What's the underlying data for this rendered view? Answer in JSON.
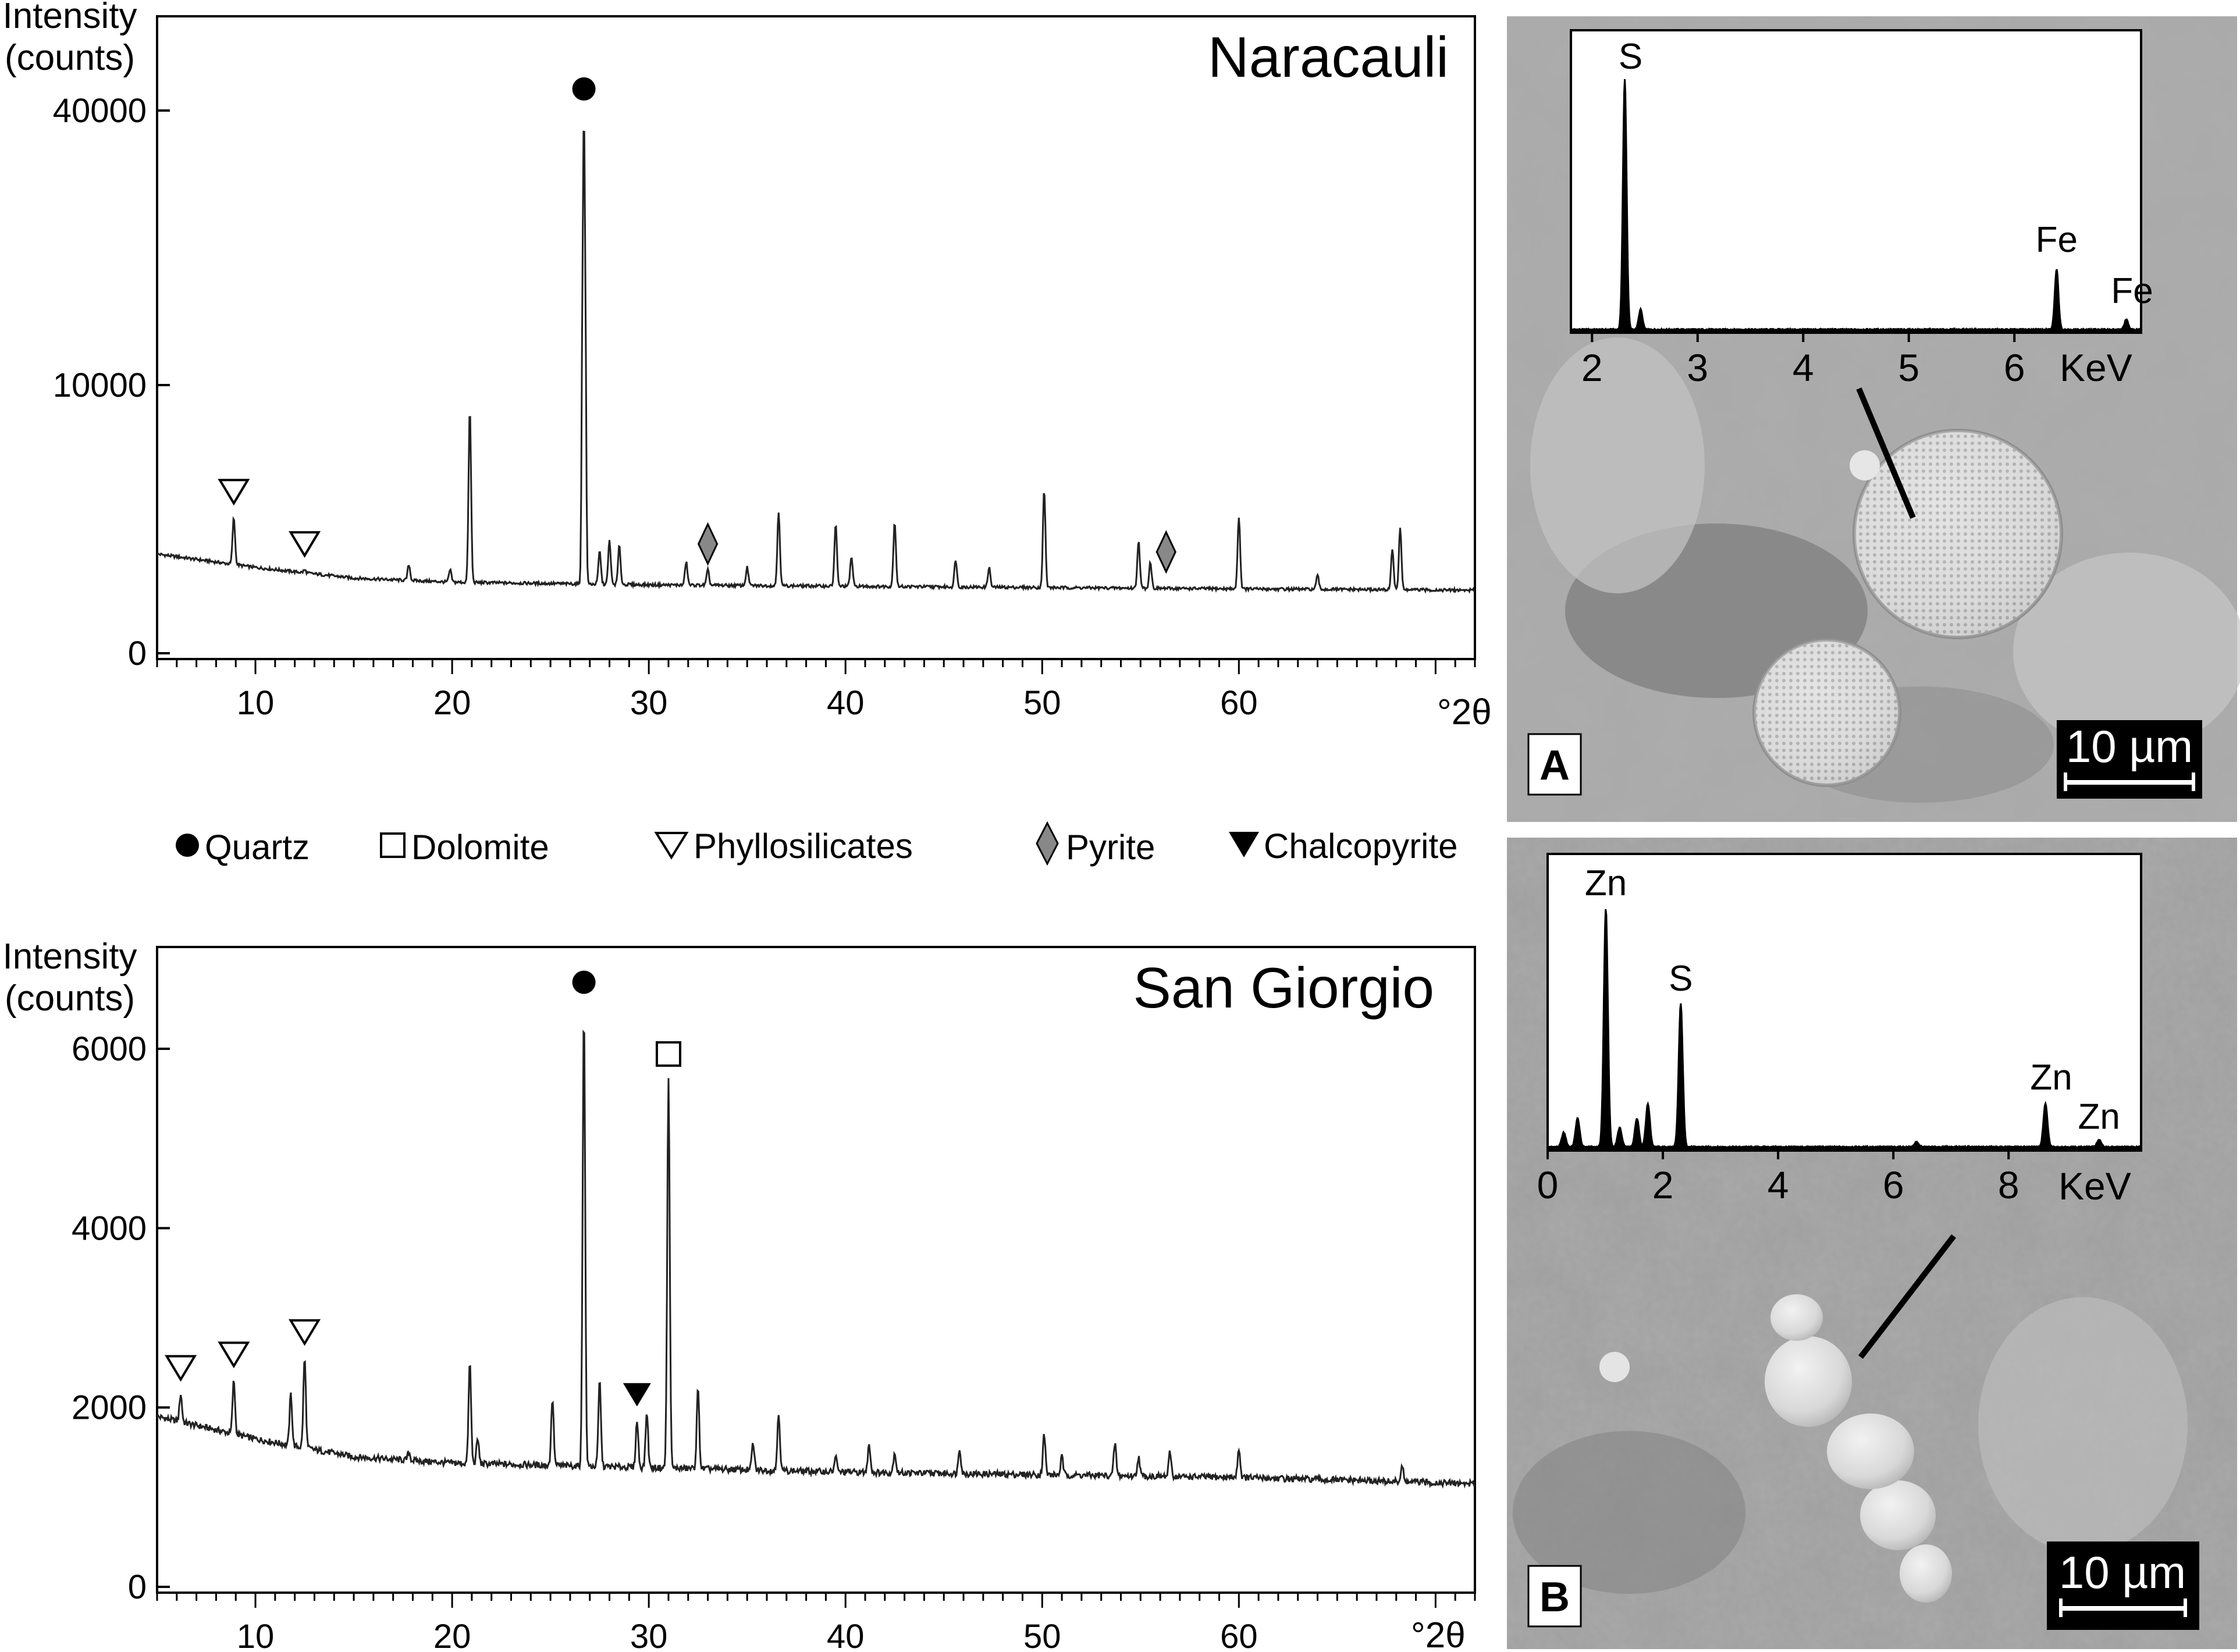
{
  "legend": {
    "items": [
      {
        "marker": "filled-circle",
        "label": "Quartz"
      },
      {
        "marker": "open-square",
        "label": "Dolomite"
      },
      {
        "marker": "open-triangle-down",
        "label": "Phyllosilicates"
      },
      {
        "marker": "grey-diamond",
        "label": "Pyrite"
      },
      {
        "marker": "filled-triangle-down",
        "label": "Chalcopyrite"
      }
    ]
  },
  "chart_data": [
    {
      "type": "line",
      "title": "Naracauli",
      "ylabel": "Intensity\n(counts)",
      "xunit": "°2θ",
      "xlim": [
        5,
        72
      ],
      "yticks": [
        0,
        10000,
        40000
      ],
      "xticks": [
        10,
        20,
        30,
        40,
        50,
        60
      ],
      "baseline": [
        [
          5,
          3700
        ],
        [
          10,
          3200
        ],
        [
          15,
          2800
        ],
        [
          20,
          2650
        ],
        [
          30,
          2550
        ],
        [
          40,
          2500
        ],
        [
          50,
          2450
        ],
        [
          60,
          2400
        ],
        [
          72,
          2350
        ]
      ],
      "peaks": [
        {
          "x": 8.9,
          "y": 5050
        },
        {
          "x": 12.5,
          "y": 3100
        },
        {
          "x": 17.8,
          "y": 3300
        },
        {
          "x": 19.9,
          "y": 3100
        },
        {
          "x": 20.9,
          "y": 9100
        },
        {
          "x": 26.7,
          "y": 39500
        },
        {
          "x": 27.5,
          "y": 3800
        },
        {
          "x": 28.0,
          "y": 4200
        },
        {
          "x": 28.5,
          "y": 4000
        },
        {
          "x": 31.9,
          "y": 3400
        },
        {
          "x": 33.0,
          "y": 3100
        },
        {
          "x": 35.0,
          "y": 3200
        },
        {
          "x": 36.6,
          "y": 5300
        },
        {
          "x": 39.5,
          "y": 4800
        },
        {
          "x": 40.3,
          "y": 3600
        },
        {
          "x": 42.5,
          "y": 4900
        },
        {
          "x": 45.6,
          "y": 3500
        },
        {
          "x": 47.3,
          "y": 3200
        },
        {
          "x": 50.1,
          "y": 6100
        },
        {
          "x": 54.9,
          "y": 4200
        },
        {
          "x": 55.5,
          "y": 3400
        },
        {
          "x": 60.0,
          "y": 5100
        },
        {
          "x": 64.0,
          "y": 2900
        },
        {
          "x": 67.8,
          "y": 3900
        },
        {
          "x": 68.2,
          "y": 4700
        }
      ],
      "markers": [
        {
          "phase": "Phyllosilicates",
          "marker": "open-triangle-down",
          "x": 8.9,
          "y": 5050
        },
        {
          "phase": "Phyllosilicates",
          "marker": "open-triangle-down",
          "x": 12.5,
          "y": 3100
        },
        {
          "phase": "Quartz",
          "marker": "filled-circle",
          "x": 26.7,
          "y": 39500
        },
        {
          "phase": "Pyrite",
          "marker": "grey-diamond",
          "x": 33.0,
          "y": 3100
        },
        {
          "phase": "Pyrite",
          "marker": "grey-diamond",
          "x": 56.3,
          "y": 2800
        }
      ]
    },
    {
      "type": "line",
      "title": "San Giorgio",
      "ylabel": "Intensity\n(counts)",
      "xunit": "°2θ",
      "xlim": [
        5,
        72
      ],
      "yticks": [
        0,
        2000,
        4000,
        6000
      ],
      "xticks": [
        10,
        20,
        30,
        40,
        50,
        60
      ],
      "baseline": [
        [
          5,
          1900
        ],
        [
          10,
          1650
        ],
        [
          15,
          1450
        ],
        [
          20,
          1380
        ],
        [
          30,
          1330
        ],
        [
          40,
          1280
        ],
        [
          50,
          1250
        ],
        [
          60,
          1220
        ],
        [
          72,
          1150
        ]
      ],
      "peaks": [
        {
          "x": 6.2,
          "y": 2150
        },
        {
          "x": 8.9,
          "y": 2300
        },
        {
          "x": 11.8,
          "y": 2150
        },
        {
          "x": 12.5,
          "y": 2550
        },
        {
          "x": 17.8,
          "y": 1500
        },
        {
          "x": 20.9,
          "y": 2500
        },
        {
          "x": 21.3,
          "y": 1650
        },
        {
          "x": 25.1,
          "y": 2100
        },
        {
          "x": 26.7,
          "y": 6450
        },
        {
          "x": 27.5,
          "y": 2300
        },
        {
          "x": 29.4,
          "y": 1850
        },
        {
          "x": 29.9,
          "y": 1950
        },
        {
          "x": 31.0,
          "y": 5650
        },
        {
          "x": 32.5,
          "y": 2200
        },
        {
          "x": 35.3,
          "y": 1600
        },
        {
          "x": 36.6,
          "y": 1950
        },
        {
          "x": 39.5,
          "y": 1450
        },
        {
          "x": 41.2,
          "y": 1600
        },
        {
          "x": 42.5,
          "y": 1500
        },
        {
          "x": 45.8,
          "y": 1550
        },
        {
          "x": 50.1,
          "y": 1700
        },
        {
          "x": 51.0,
          "y": 1450
        },
        {
          "x": 53.7,
          "y": 1600
        },
        {
          "x": 54.9,
          "y": 1450
        },
        {
          "x": 56.5,
          "y": 1500
        },
        {
          "x": 60.0,
          "y": 1550
        },
        {
          "x": 68.3,
          "y": 1350
        }
      ],
      "markers": [
        {
          "phase": "Phyllosilicates",
          "marker": "open-triangle-down",
          "x": 6.2,
          "y": 2150
        },
        {
          "phase": "Phyllosilicates",
          "marker": "open-triangle-down",
          "x": 8.9,
          "y": 2300
        },
        {
          "phase": "Phyllosilicates",
          "marker": "open-triangle-down",
          "x": 12.5,
          "y": 2550
        },
        {
          "phase": "Quartz",
          "marker": "filled-circle",
          "x": 26.7,
          "y": 6450
        },
        {
          "phase": "Chalcopyrite",
          "marker": "filled-triangle-down",
          "x": 29.4,
          "y": 1850
        },
        {
          "phase": "Dolomite",
          "marker": "open-square",
          "x": 31.0,
          "y": 5650
        }
      ]
    },
    {
      "type": "area",
      "panel": "A",
      "xunit": "KeV",
      "xlim": [
        1.8,
        7.2
      ],
      "xticks": [
        2,
        3,
        4,
        5,
        6
      ],
      "peaks": [
        {
          "x": 2.31,
          "y": 100,
          "label": "S"
        },
        {
          "x": 2.46,
          "y": 8
        },
        {
          "x": 6.4,
          "y": 24,
          "label": "Fe"
        },
        {
          "x": 7.06,
          "y": 4,
          "label": "Fe"
        }
      ],
      "scale_bar": "10 µm"
    },
    {
      "type": "area",
      "panel": "B",
      "xunit": "KeV",
      "xlim": [
        0,
        10.3
      ],
      "xticks": [
        0,
        2,
        4,
        6,
        8
      ],
      "peaks": [
        {
          "x": 0.28,
          "y": 6
        },
        {
          "x": 0.52,
          "y": 12
        },
        {
          "x": 1.01,
          "y": 100,
          "label": "Zn"
        },
        {
          "x": 1.25,
          "y": 8
        },
        {
          "x": 1.55,
          "y": 12
        },
        {
          "x": 1.74,
          "y": 18
        },
        {
          "x": 2.31,
          "y": 60,
          "label": "S"
        },
        {
          "x": 6.4,
          "y": 2
        },
        {
          "x": 8.64,
          "y": 18,
          "label": "Zn"
        },
        {
          "x": 9.57,
          "y": 3,
          "label": "Zn"
        }
      ],
      "scale_bar": "10 µm"
    }
  ]
}
